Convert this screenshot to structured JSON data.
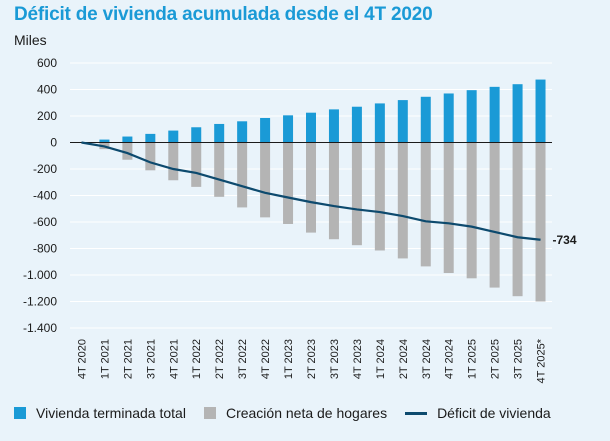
{
  "chart_data": {
    "type": "bar",
    "title": "Déficit de vivienda acumulada desde el 4T 2020",
    "ylabel": "Miles",
    "xlabel": "",
    "ylim": [
      -1400,
      600
    ],
    "yticks": [
      600,
      400,
      200,
      0,
      -200,
      -400,
      -600,
      -800,
      -1000,
      -1200,
      -1400
    ],
    "ytick_labels": [
      "600",
      "400",
      "200",
      "0",
      "-200",
      "-400",
      "-600",
      "-800",
      "-1.000",
      "-1.200",
      "-1.400"
    ],
    "categories": [
      "4T 2020",
      "1T 2021",
      "2T 2021",
      "3T 2021",
      "4T 2021",
      "1T 2022",
      "2T 2022",
      "3T 2022",
      "4T 2022",
      "1T 2023",
      "2T 2023",
      "3T 2023",
      "4T 2023",
      "1T 2024",
      "2T 2024",
      "3T 2024",
      "4T 2024",
      "1T 2025",
      "2T 2025",
      "3T 2025",
      "4T 2025*"
    ],
    "series": [
      {
        "name": "Vivienda terminada total",
        "type": "bar",
        "color": "#1a9ad6",
        "values": [
          0,
          22,
          45,
          65,
          90,
          115,
          140,
          160,
          185,
          205,
          225,
          250,
          270,
          295,
          320,
          345,
          370,
          395,
          420,
          440,
          475
        ]
      },
      {
        "name": "Creación neta de hogares",
        "type": "bar",
        "color": "#b4b4b4",
        "values": [
          0,
          -50,
          -130,
          -210,
          -285,
          -335,
          -410,
          -490,
          -565,
          -615,
          -680,
          -730,
          -775,
          -815,
          -875,
          -935,
          -985,
          -1025,
          -1095,
          -1160,
          -1200
        ]
      },
      {
        "name": "Déficit de vivienda",
        "type": "line",
        "color": "#0d4a6e",
        "values": [
          0,
          -30,
          -80,
          -150,
          -200,
          -230,
          -280,
          -330,
          -380,
          -415,
          -450,
          -480,
          -505,
          -525,
          -555,
          -595,
          -610,
          -635,
          -675,
          -715,
          -734
        ]
      }
    ],
    "annotations": [
      {
        "text": "-734"
      }
    ]
  }
}
